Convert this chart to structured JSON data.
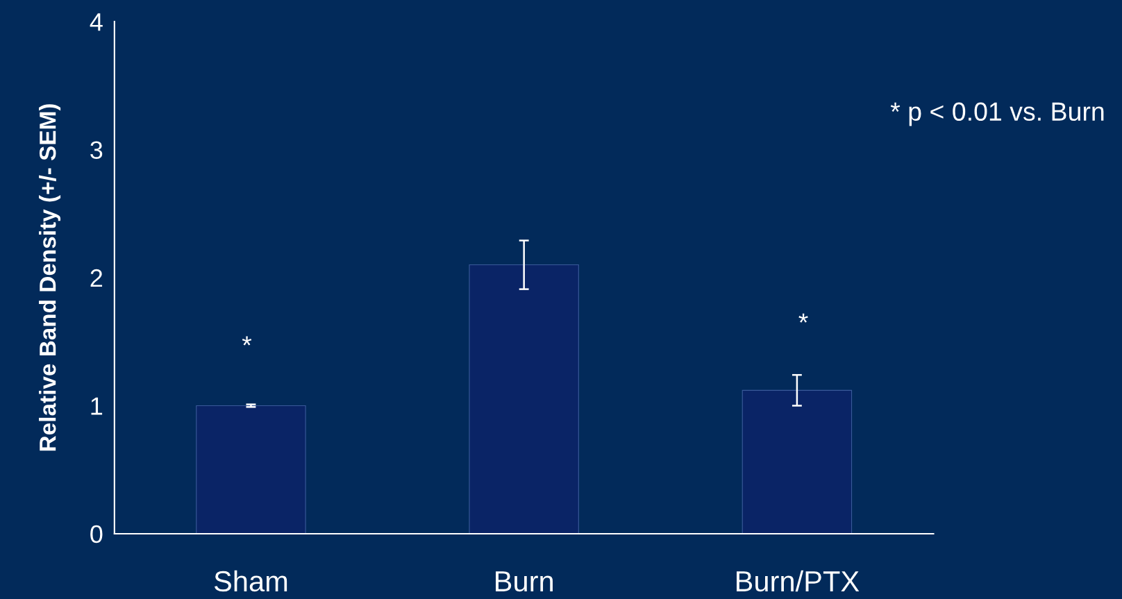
{
  "chart_data": {
    "type": "bar",
    "ylabel": "Relative Band Density (+/- SEM)",
    "categories": [
      "Sham",
      "Burn",
      "Burn/PTX"
    ],
    "values": [
      1.0,
      2.1,
      1.12
    ],
    "errors": [
      0.01,
      0.19,
      0.12
    ],
    "color": "#0a2466",
    "ylim": [
      0,
      4
    ],
    "yticks": [
      0,
      1,
      2,
      3,
      4
    ],
    "grid": false,
    "annotations": [
      "*",
      "*",
      "* p < 0.01 vs. Burn"
    ]
  }
}
